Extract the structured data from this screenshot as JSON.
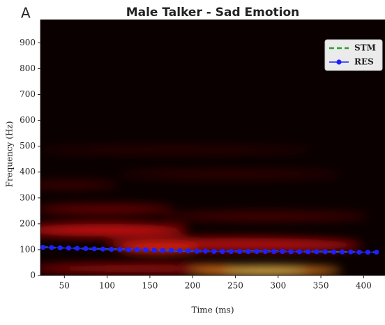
{
  "chart_data": {
    "type": "line",
    "panel_label": "A",
    "title": "Male Talker - Sad Emotion",
    "x_label": "Time (ms)",
    "y_label": "Frequency (Hz)",
    "x": [
      25,
      35,
      45,
      55,
      65,
      75,
      85,
      95,
      105,
      115,
      125,
      135,
      145,
      155,
      165,
      175,
      185,
      195,
      205,
      215,
      225,
      235,
      245,
      255,
      265,
      275,
      285,
      295,
      305,
      315,
      325,
      335,
      345,
      355,
      365,
      375,
      385,
      395,
      405,
      415
    ],
    "series": [
      {
        "name": "STM",
        "color": "#2ca02c",
        "values": [
          109,
          108,
          107,
          106,
          105,
          104,
          103,
          102,
          101,
          101,
          100,
          100,
          99,
          98,
          97,
          97,
          96,
          95,
          94,
          94,
          93,
          93,
          93,
          93,
          93,
          93,
          93,
          93,
          93,
          92,
          92,
          92,
          92,
          92,
          91,
          91,
          91,
          90,
          90,
          90
        ]
      },
      {
        "name": "RES",
        "color": "#1f1fff",
        "values": [
          109,
          108,
          107,
          106,
          105,
          104,
          103,
          102,
          101,
          101,
          100,
          100,
          99,
          98,
          97,
          97,
          96,
          95,
          94,
          94,
          93,
          93,
          93,
          93,
          93,
          93,
          93,
          93,
          93,
          92,
          92,
          92,
          92,
          92,
          91,
          91,
          91,
          90,
          90,
          90
        ]
      }
    ],
    "xlim": [
      22,
      425
    ],
    "ylim": [
      0,
      990
    ],
    "xticks": [
      50,
      100,
      150,
      200,
      250,
      300,
      350,
      400
    ],
    "yticks": [
      0,
      100,
      200,
      300,
      400,
      500,
      600,
      700,
      800,
      900
    ],
    "legend": "upper right"
  }
}
